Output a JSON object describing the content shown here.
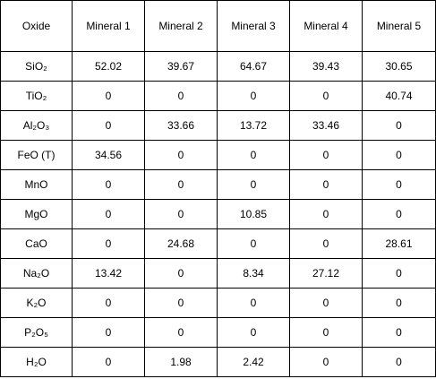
{
  "table": {
    "headers": [
      "Oxide",
      "Mineral 1",
      "Mineral 2",
      "Mineral 3",
      "Mineral 4",
      "Mineral 5"
    ],
    "rows": [
      {
        "oxide": "SiO₂",
        "values": [
          "52.02",
          "39.67",
          "64.67",
          "39.43",
          "30.65"
        ]
      },
      {
        "oxide": "TiO₂",
        "values": [
          "0",
          "0",
          "0",
          "0",
          "40.74"
        ]
      },
      {
        "oxide": "Al₂O₃",
        "values": [
          "0",
          "33.66",
          "13.72",
          "33.46",
          "0"
        ]
      },
      {
        "oxide": "FeO (T)",
        "values": [
          "34.56",
          "0",
          "0",
          "0",
          "0"
        ]
      },
      {
        "oxide": "MnO",
        "values": [
          "0",
          "0",
          "0",
          "0",
          "0"
        ]
      },
      {
        "oxide": "MgO",
        "values": [
          "0",
          "0",
          "10.85",
          "0",
          "0"
        ]
      },
      {
        "oxide": "CaO",
        "values": [
          "0",
          "24.68",
          "0",
          "0",
          "28.61"
        ]
      },
      {
        "oxide": "Na₂O",
        "values": [
          "13.42",
          "0",
          "8.34",
          "27.12",
          "0"
        ]
      },
      {
        "oxide": "K₂O",
        "values": [
          "0",
          "0",
          "0",
          "0",
          "0"
        ]
      },
      {
        "oxide": "P₂O₅",
        "values": [
          "0",
          "0",
          "0",
          "0",
          "0"
        ]
      },
      {
        "oxide": "H₂O",
        "values": [
          "0",
          "1.98",
          "2.42",
          "0",
          "0"
        ]
      }
    ]
  }
}
